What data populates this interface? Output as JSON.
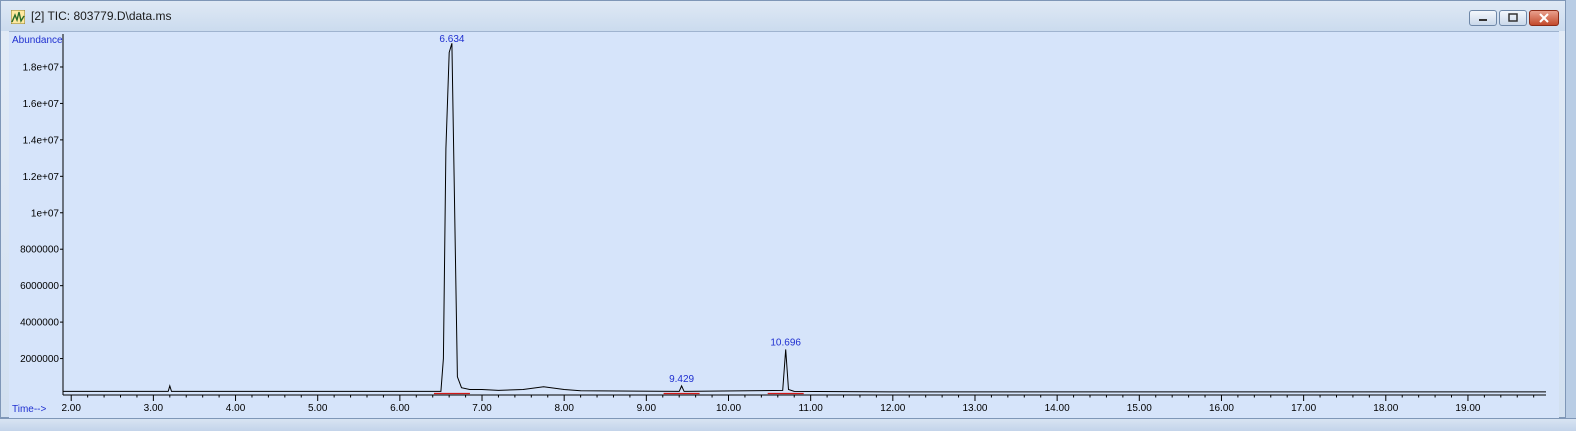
{
  "window": {
    "title": "[2] TIC: 803779.D\\data.ms",
    "controls": {
      "minimize_icon": "minimize-icon",
      "maximize_icon": "maximize-icon",
      "close_icon": "close-icon"
    }
  },
  "chart_data": {
    "type": "line",
    "ylabel": "Abundance",
    "xlabel": "Time-->",
    "xlim": [
      1.9,
      19.95
    ],
    "ylim": [
      0,
      19700000
    ],
    "x_ticks": [
      "2.00",
      "3.00",
      "4.00",
      "5.00",
      "6.00",
      "7.00",
      "8.00",
      "9.00",
      "10.00",
      "11.00",
      "12.00",
      "13.00",
      "14.00",
      "15.00",
      "16.00",
      "17.00",
      "18.00",
      "19.00"
    ],
    "y_ticks": [
      "2000000",
      "4000000",
      "6000000",
      "8000000",
      "1e+07",
      "1.2e+07",
      "1.4e+07",
      "1.6e+07",
      "1.8e+07"
    ],
    "y_tick_values": [
      2000000,
      4000000,
      6000000,
      8000000,
      10000000,
      12000000,
      14000000,
      16000000,
      18000000
    ],
    "series": [
      {
        "x": [
          1.9,
          3.18,
          3.2,
          3.22,
          6.5,
          6.53,
          6.56,
          6.6,
          6.634,
          6.66,
          6.7,
          6.75,
          6.85,
          7.0,
          7.2,
          7.5,
          7.75,
          8.0,
          8.2,
          9.4,
          9.429,
          9.46,
          10.66,
          10.696,
          10.73,
          10.8,
          12.0,
          19.95
        ],
        "y": [
          200000,
          200000,
          500000,
          200000,
          200000,
          2000000,
          13500000,
          18800000,
          19300000,
          12000000,
          1000000,
          400000,
          300000,
          300000,
          250000,
          300000,
          450000,
          300000,
          230000,
          200000,
          500000,
          200000,
          250000,
          2500000,
          300000,
          200000,
          170000,
          170000
        ]
      }
    ],
    "peak_labels": [
      {
        "x": 6.634,
        "label": "6.634"
      },
      {
        "x": 9.429,
        "label": "9.429"
      },
      {
        "x": 10.696,
        "label": "10.696"
      }
    ],
    "colors": {
      "trace": "#000000",
      "axis": "#000000",
      "label": "#1f2fd0",
      "baseline_marker": "#d01818"
    }
  }
}
